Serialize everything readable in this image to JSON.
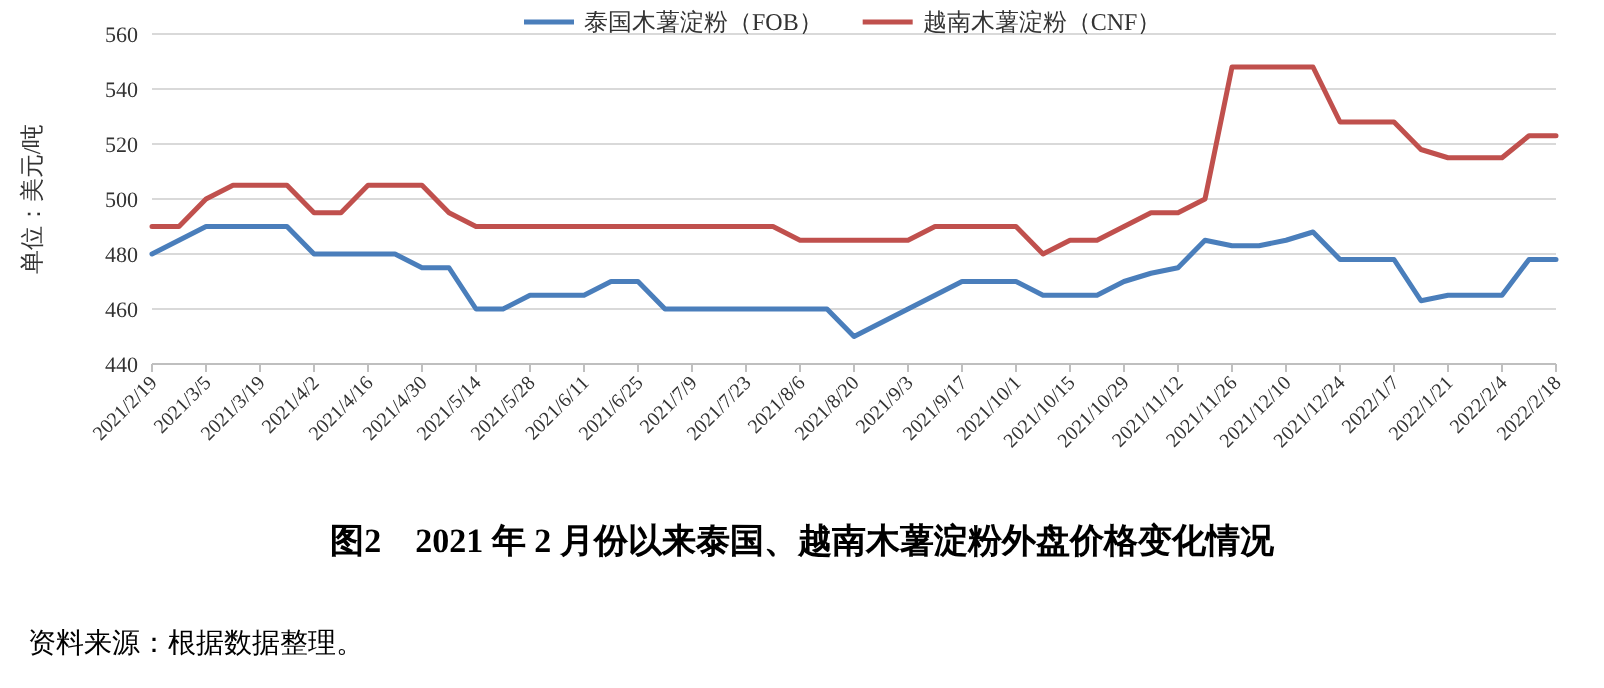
{
  "chart_data": {
    "type": "line",
    "title": "图2　2021 年 2 月份以来泰国、越南木薯淀粉外盘价格变化情况",
    "ylabel": "单位：美元/吨",
    "annotations": [
      "资料来源：根据数据整理。"
    ],
    "categories": [
      "2021/2/19",
      null,
      "2021/3/5",
      null,
      "2021/3/19",
      null,
      "2021/4/2",
      null,
      "2021/4/16",
      null,
      "2021/4/30",
      null,
      "2021/5/14",
      null,
      "2021/5/28",
      null,
      "2021/6/11",
      null,
      "2021/6/25",
      null,
      "2021/7/9",
      null,
      "2021/7/23",
      null,
      "2021/8/6",
      null,
      "2021/8/20",
      null,
      "2021/9/3",
      null,
      "2021/9/17",
      null,
      "2021/10/1",
      null,
      "2021/10/15",
      null,
      "2021/10/29",
      null,
      "2021/11/12",
      null,
      "2021/11/26",
      null,
      "2021/12/10",
      null,
      "2021/12/24",
      null,
      "2022/1/7",
      null,
      "2022/1/21",
      null,
      "2022/2/4",
      null,
      "2022/2/18"
    ],
    "series": [
      {
        "name": "泰国木薯淀粉（FOB）",
        "color": "#4a7ebb",
        "values": [
          480,
          485,
          490,
          490,
          490,
          490,
          480,
          480,
          480,
          480,
          475,
          475,
          460,
          460,
          465,
          465,
          465,
          470,
          470,
          460,
          460,
          460,
          460,
          460,
          460,
          460,
          450,
          455,
          460,
          465,
          470,
          470,
          470,
          465,
          465,
          465,
          470,
          473,
          475,
          485,
          483,
          483,
          485,
          488,
          478,
          478,
          478,
          463,
          465,
          465,
          465,
          478,
          478
        ]
      },
      {
        "name": "越南木薯淀粉（CNF）",
        "color": "#c0504d",
        "values": [
          490,
          490,
          500,
          505,
          505,
          505,
          495,
          495,
          505,
          505,
          505,
          495,
          490,
          490,
          490,
          490,
          490,
          490,
          490,
          490,
          490,
          490,
          490,
          490,
          485,
          485,
          485,
          485,
          485,
          490,
          490,
          490,
          490,
          480,
          485,
          485,
          490,
          495,
          495,
          500,
          548,
          548,
          548,
          548,
          528,
          528,
          528,
          518,
          515,
          515,
          515,
          523,
          523
        ]
      }
    ],
    "ylim": [
      440,
      560
    ],
    "yticks": [
      440,
      460,
      480,
      500,
      520,
      540,
      560
    ],
    "grid": "y",
    "legend": "top"
  }
}
